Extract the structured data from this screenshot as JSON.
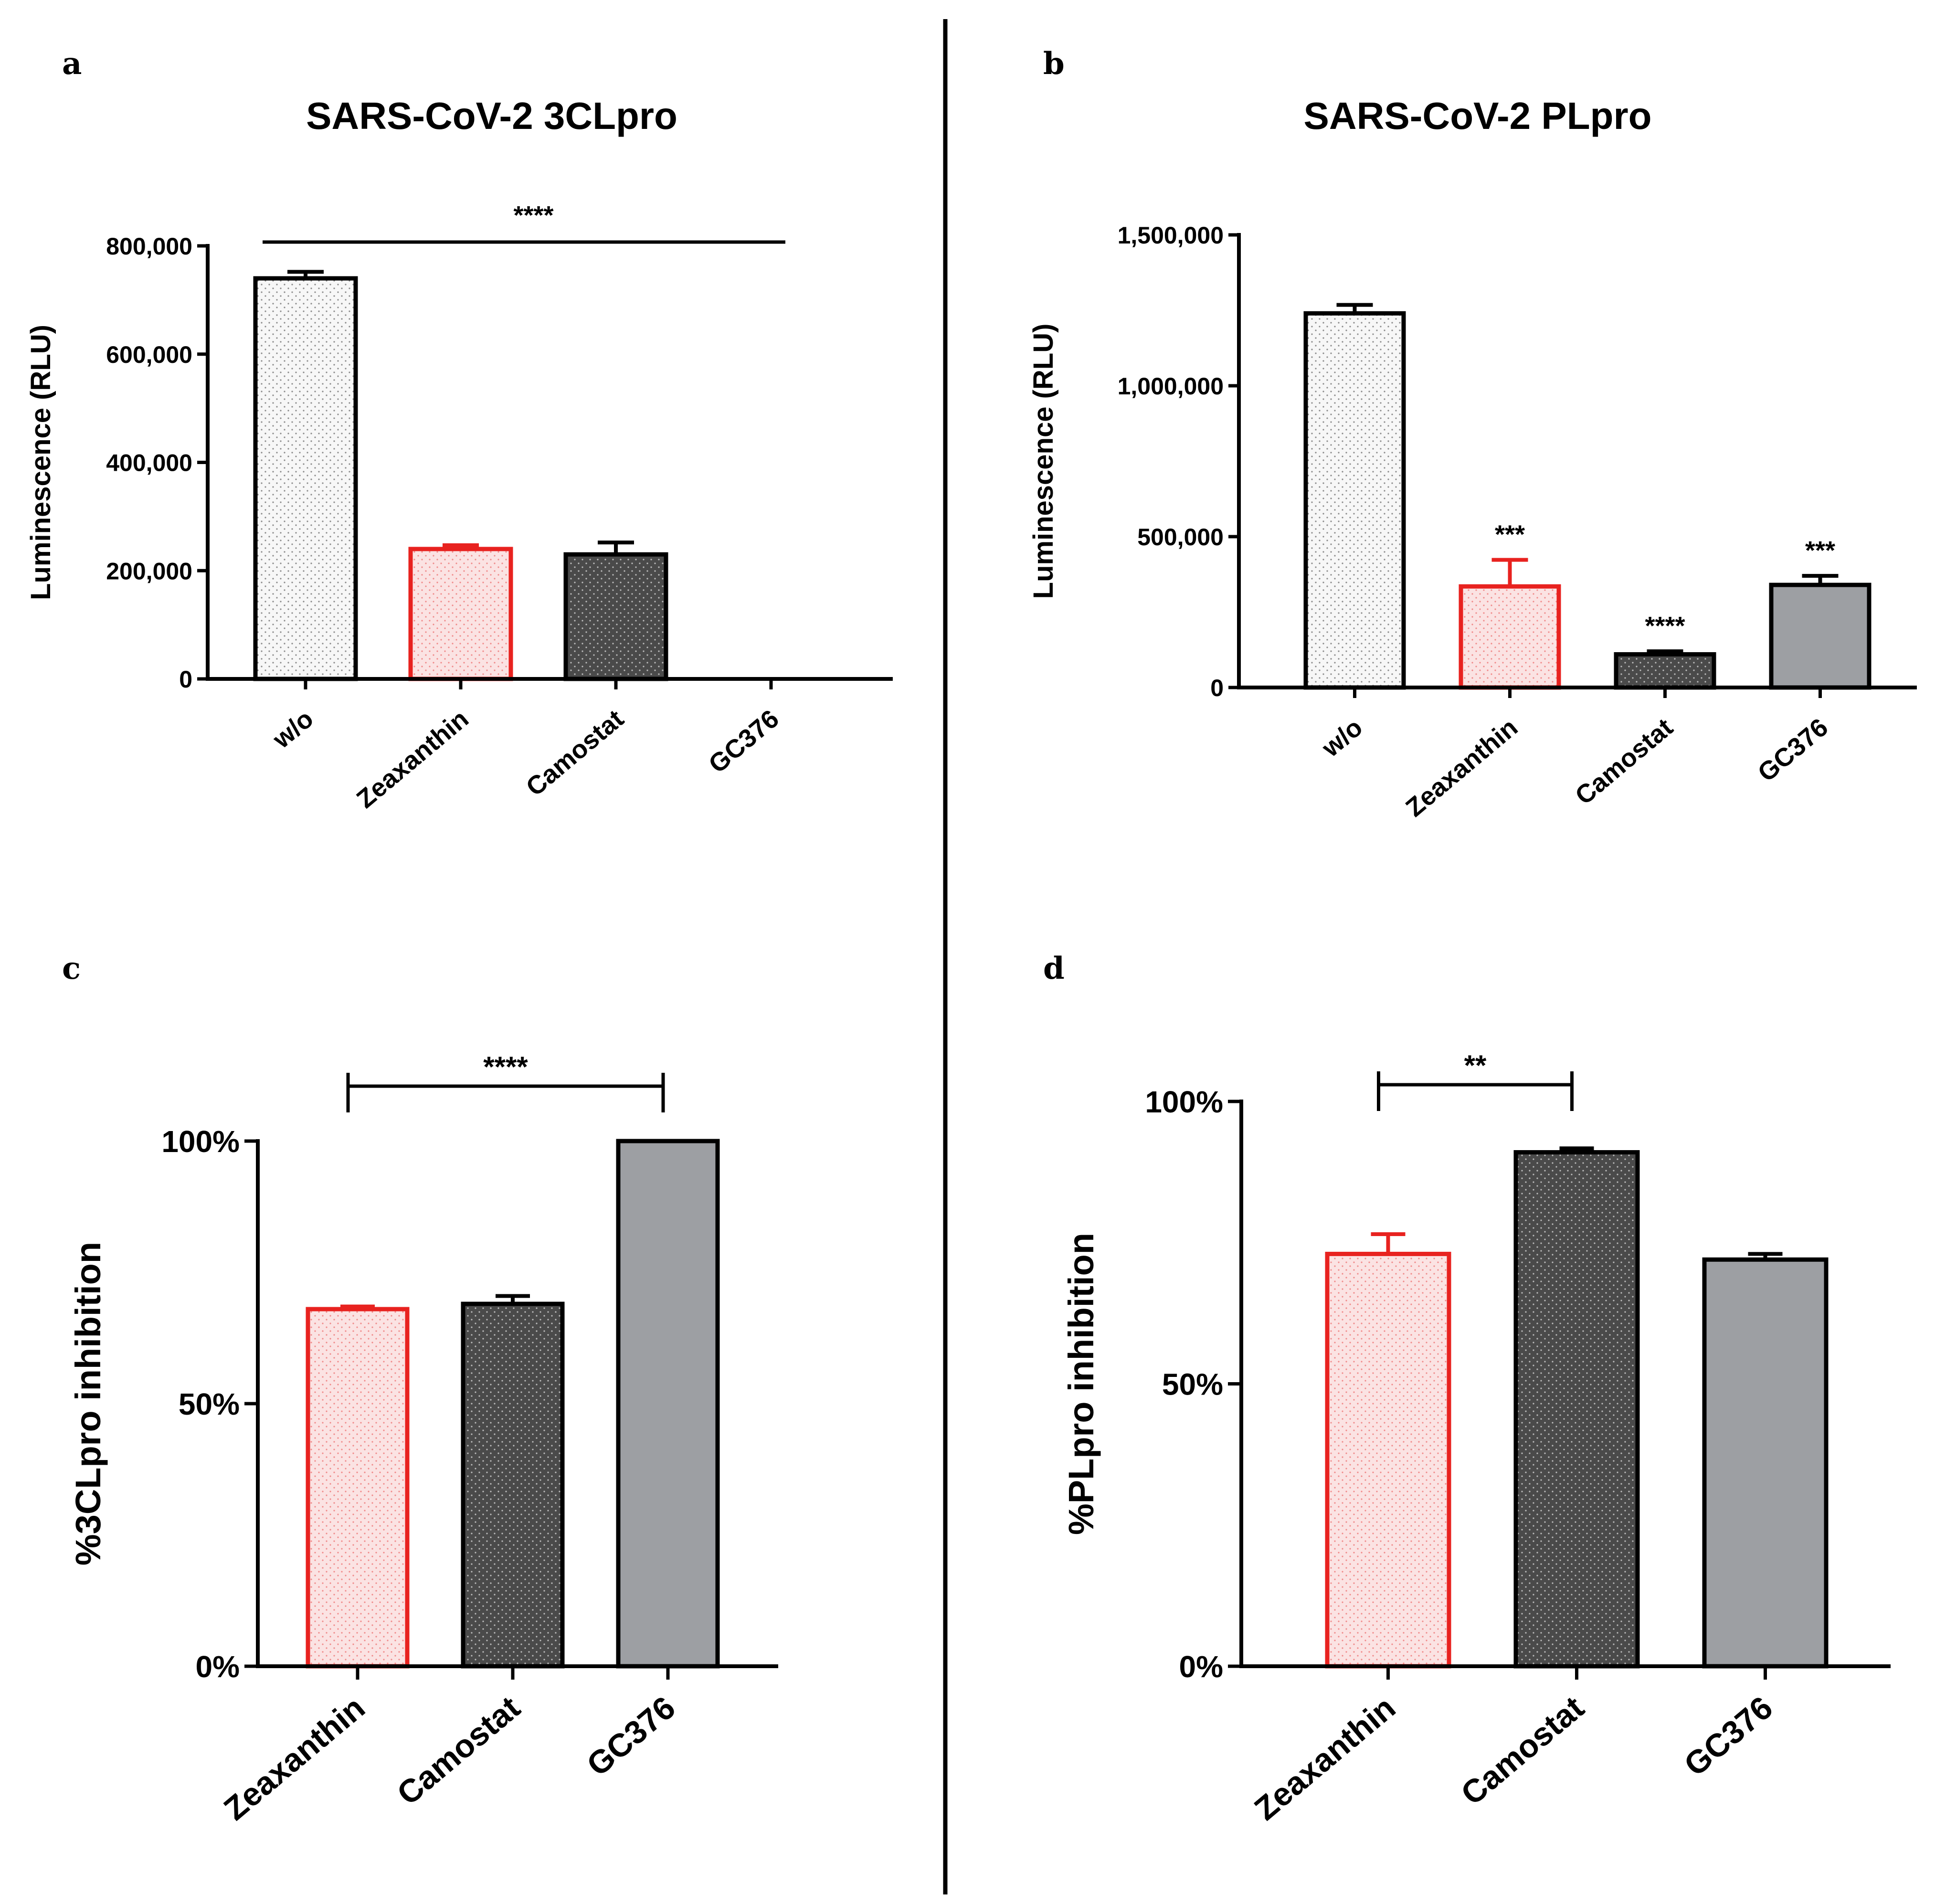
{
  "colors": {
    "white_fill": "#f7f7f7",
    "red_outline": "#e8221f",
    "red_fill": "#fbe3e3",
    "dark_fill": "#4a4a4a",
    "gray_fill": "#9d9fa3",
    "black": "#000000"
  },
  "chart_data": [
    {
      "panel": "a",
      "type": "bar",
      "title": "SARS-CoV-2 3CLpro",
      "xlabel": "",
      "ylabel": "Luminescence (RLU)",
      "categories": [
        "w/o",
        "Zeaxanthin",
        "Camostat",
        "GC376"
      ],
      "values": [
        740000,
        240000,
        230000,
        0
      ],
      "errors": [
        12000,
        7000,
        22000,
        0
      ],
      "styles": [
        "white",
        "red",
        "dark",
        "gray"
      ],
      "ylim": [
        0,
        800000
      ],
      "yticks": [
        0,
        200000,
        400000,
        600000,
        800000
      ],
      "ytick_labels": [
        "0",
        "200,000",
        "400,000",
        "600,000",
        "800,000"
      ],
      "significance": [
        {
          "label": "****",
          "from": 0,
          "to": 3,
          "line": true
        }
      ]
    },
    {
      "panel": "b",
      "type": "bar",
      "title": "SARS-CoV-2  PLpro",
      "xlabel": "",
      "ylabel": "Luminescence (RLU)",
      "categories": [
        "w/o",
        "Zeaxanthin",
        "Camostat",
        "GC376"
      ],
      "values": [
        1240000,
        335000,
        110000,
        340000
      ],
      "errors": [
        28000,
        88000,
        10000,
        30000
      ],
      "styles": [
        "white",
        "red",
        "dark",
        "gray"
      ],
      "ylim": [
        0,
        1500000
      ],
      "yticks": [
        0,
        500000,
        1000000,
        1500000
      ],
      "ytick_labels": [
        "0",
        "500,000",
        "1,000,000",
        "1,500,000"
      ],
      "significance": [
        {
          "label": "***",
          "bar": 1
        },
        {
          "label": "****",
          "bar": 2
        },
        {
          "label": "***",
          "bar": 3
        }
      ]
    },
    {
      "panel": "c",
      "type": "bar",
      "title": "",
      "xlabel": "",
      "ylabel": "%3CLpro inhibition",
      "categories": [
        "Zeaxanthin",
        "Camostat",
        "GC376"
      ],
      "values": [
        68,
        69,
        100
      ],
      "errors": [
        0.5,
        1.5,
        0
      ],
      "styles": [
        "red",
        "dark",
        "gray"
      ],
      "ylim": [
        0,
        100
      ],
      "yticks": [
        0,
        50,
        100
      ],
      "ytick_labels": [
        "0%",
        "50%",
        "100%"
      ],
      "significance": [
        {
          "label": "****",
          "from": 0,
          "to": 2,
          "bracket": true
        }
      ]
    },
    {
      "panel": "d",
      "type": "bar",
      "title": "",
      "xlabel": "",
      "ylabel": "%PLpro inhibition",
      "categories": [
        "Zeaxanthin",
        "Camostat",
        "GC376"
      ],
      "values": [
        73,
        91,
        72
      ],
      "errors": [
        3.5,
        0.7,
        1
      ],
      "styles": [
        "red",
        "dark",
        "gray"
      ],
      "ylim": [
        0,
        100
      ],
      "yticks": [
        0,
        50,
        100
      ],
      "ytick_labels": [
        "0%",
        "50%",
        "100%"
      ],
      "significance": [
        {
          "label": "**",
          "from": 0,
          "to": 1,
          "bracket": true
        }
      ]
    }
  ]
}
